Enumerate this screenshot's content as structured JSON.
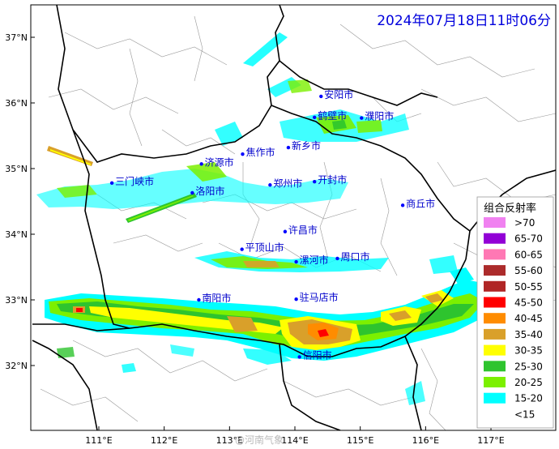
{
  "title": "2024年07月18日11时06分",
  "lat_ticks": [
    {
      "label": "37°N",
      "value": 37
    },
    {
      "label": "36°N",
      "value": 36
    },
    {
      "label": "35°N",
      "value": 35
    },
    {
      "label": "34°N",
      "value": 34
    },
    {
      "label": "33°N",
      "value": 33
    },
    {
      "label": "32°N",
      "value": 32
    }
  ],
  "lon_ticks": [
    {
      "label": "111°E",
      "value": 111
    },
    {
      "label": "112°E",
      "value": 112
    },
    {
      "label": "113°E",
      "value": 113
    },
    {
      "label": "114°E",
      "value": 114
    },
    {
      "label": "115°E",
      "value": 115
    },
    {
      "label": "116°E",
      "value": 116
    },
    {
      "label": "117°E",
      "value": 117
    }
  ],
  "cities": [
    {
      "name": "安阳市",
      "lon": 114.4,
      "lat": 36.1
    },
    {
      "name": "鹤壁市",
      "lon": 114.3,
      "lat": 35.78
    },
    {
      "name": "濮阳市",
      "lon": 115.02,
      "lat": 35.77
    },
    {
      "name": "新乡市",
      "lon": 113.9,
      "lat": 35.32
    },
    {
      "name": "焦作市",
      "lon": 113.2,
      "lat": 35.22
    },
    {
      "name": "济源市",
      "lon": 112.57,
      "lat": 35.07
    },
    {
      "name": "三门峡市",
      "lon": 111.2,
      "lat": 34.78
    },
    {
      "name": "洛阳市",
      "lon": 112.43,
      "lat": 34.63
    },
    {
      "name": "郑州市",
      "lon": 113.62,
      "lat": 34.75
    },
    {
      "name": "开封市",
      "lon": 114.3,
      "lat": 34.8
    },
    {
      "name": "商丘市",
      "lon": 115.65,
      "lat": 34.44
    },
    {
      "name": "许昌市",
      "lon": 113.85,
      "lat": 34.04
    },
    {
      "name": "平顶山市",
      "lon": 113.19,
      "lat": 33.77
    },
    {
      "name": "漯河市",
      "lon": 114.02,
      "lat": 33.58
    },
    {
      "name": "周口市",
      "lon": 114.65,
      "lat": 33.63
    },
    {
      "name": "南阳市",
      "lon": 112.53,
      "lat": 33.0
    },
    {
      "name": "驻马店市",
      "lon": 114.02,
      "lat": 33.01
    },
    {
      "name": "信阳市",
      "lon": 114.07,
      "lat": 32.13
    }
  ],
  "legend": {
    "title": "组合反射率",
    "items": [
      {
        "label": ">70",
        "color": "#f081f0"
      },
      {
        "label": "65-70",
        "color": "#9200d6"
      },
      {
        "label": "60-65",
        "color": "#ff78b4"
      },
      {
        "label": "55-60",
        "color": "#ac2b2b"
      },
      {
        "label": "50-55",
        "color": "#b02525"
      },
      {
        "label": "45-50",
        "color": "#ff0000"
      },
      {
        "label": "40-45",
        "color": "#ff8c00"
      },
      {
        "label": "35-40",
        "color": "#d9a02a"
      },
      {
        "label": "30-35",
        "color": "#ffff00"
      },
      {
        "label": "25-30",
        "color": "#2ec42e"
      },
      {
        "label": "20-25",
        "color": "#7cf000"
      },
      {
        "label": "15-20",
        "color": "#00ffff"
      },
      {
        "label": "<15",
        "color": "#ffffff"
      }
    ]
  },
  "watermark": "@河南气象",
  "colors": {
    "city_text": "#0000cc",
    "city_dot": "#0000ff",
    "title": "#0000dd"
  }
}
